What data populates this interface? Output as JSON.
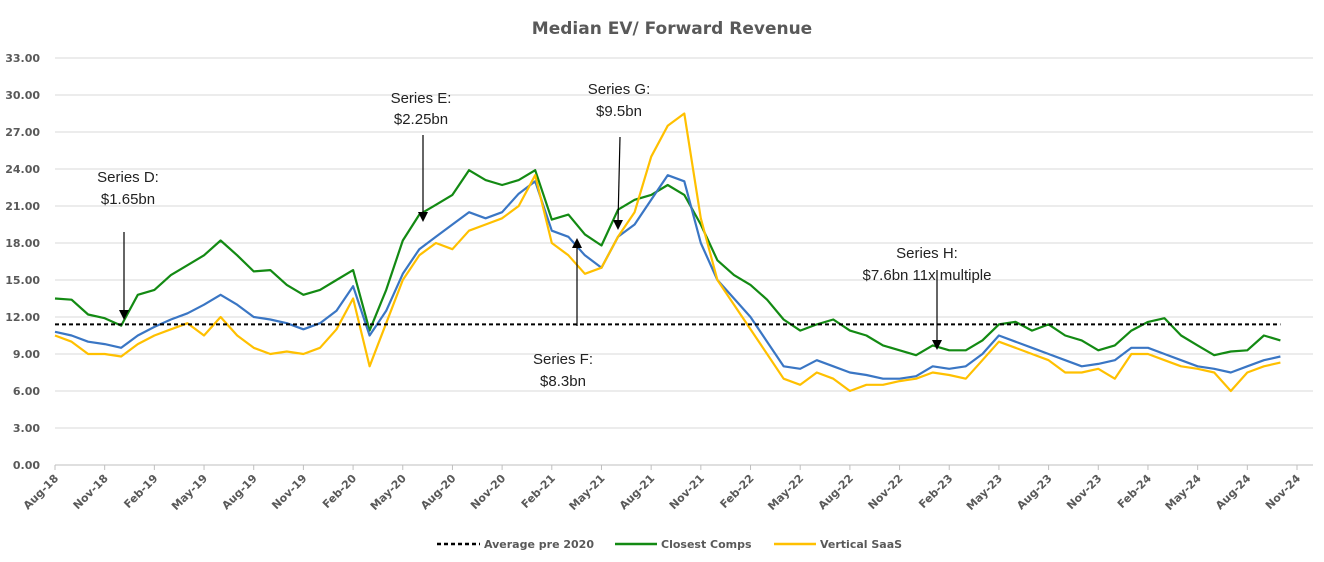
{
  "chart_data": {
    "type": "line",
    "title": "Median EV/ Forward Revenue",
    "xlabel": "",
    "ylabel": "",
    "ylim": [
      0,
      33
    ],
    "y_ticks": [
      "0.00",
      "3.00",
      "6.00",
      "9.00",
      "12.00",
      "15.00",
      "18.00",
      "21.00",
      "24.00",
      "27.00",
      "30.00",
      "33.00"
    ],
    "x_ticks": [
      "Aug-18",
      "Nov-18",
      "Feb-19",
      "May-19",
      "Aug-19",
      "Nov-19",
      "Feb-20",
      "May-20",
      "Aug-20",
      "Nov-20",
      "Feb-21",
      "May-21",
      "Aug-21",
      "Nov-21",
      "Feb-22",
      "May-22",
      "Aug-22",
      "Nov-22",
      "Feb-23",
      "May-23",
      "Aug-23",
      "Nov-23",
      "Feb-24",
      "May-24",
      "Aug-24",
      "Nov-24"
    ],
    "x_start": "Aug-18",
    "x_frequency": "monthly",
    "grid": true,
    "legend_position": "bottom",
    "series": [
      {
        "name": "Average pre 2020",
        "color": "#000000",
        "style": "dashed",
        "constant": 11.4
      },
      {
        "name": "Closest Comps",
        "color": "#138a13",
        "values": [
          13.5,
          13.4,
          12.2,
          11.9,
          11.3,
          13.8,
          14.2,
          15.4,
          16.2,
          17.0,
          18.2,
          17.0,
          15.7,
          15.8,
          14.6,
          13.8,
          14.2,
          15.0,
          15.8,
          10.9,
          14.2,
          18.2,
          20.3,
          21.1,
          21.9,
          23.9,
          23.1,
          22.7,
          23.1,
          23.9,
          19.9,
          20.3,
          18.7,
          17.8,
          20.7,
          21.5,
          21.9,
          22.7,
          21.9,
          19.5,
          16.6,
          15.4,
          14.6,
          13.4,
          11.8,
          10.9,
          11.4,
          11.8,
          10.9,
          10.5,
          9.7,
          9.3,
          8.9,
          9.7,
          9.3,
          9.3,
          10.1,
          11.4,
          11.6,
          10.9,
          11.4,
          10.5,
          10.1,
          9.3,
          9.7,
          10.9,
          11.6,
          11.9,
          10.5,
          9.7,
          8.9,
          9.2,
          9.3,
          10.5,
          10.1
        ]
      },
      {
        "color": "#3a76c4",
        "values": [
          10.8,
          10.5,
          10.0,
          9.8,
          9.5,
          10.5,
          11.2,
          11.8,
          12.3,
          13.0,
          13.8,
          13.0,
          12.0,
          11.8,
          11.5,
          11.0,
          11.5,
          12.5,
          14.5,
          10.5,
          12.5,
          15.5,
          17.5,
          18.5,
          19.5,
          20.5,
          20.0,
          20.5,
          22.0,
          23.0,
          19.0,
          18.5,
          17.0,
          16.0,
          18.5,
          19.5,
          21.5,
          23.5,
          23.0,
          18.0,
          15.0,
          13.5,
          12.0,
          10.0,
          8.0,
          7.8,
          8.5,
          8.0,
          7.5,
          7.3,
          7.0,
          7.0,
          7.2,
          8.0,
          7.8,
          8.0,
          9.0,
          10.5,
          10.0,
          9.5,
          9.0,
          8.5,
          8.0,
          8.2,
          8.5,
          9.5,
          9.5,
          9.0,
          8.5,
          8.0,
          7.8,
          7.5,
          8.0,
          8.5,
          8.8
        ]
      },
      {
        "name": "Vertical SaaS",
        "color": "#ffc000",
        "values": [
          10.5,
          10.0,
          9.0,
          9.0,
          8.8,
          9.8,
          10.5,
          11.0,
          11.5,
          10.5,
          12.0,
          10.5,
          9.5,
          9.0,
          9.2,
          9.0,
          9.5,
          11.0,
          13.5,
          8.0,
          11.5,
          15.0,
          17.0,
          18.0,
          17.5,
          19.0,
          19.5,
          20.0,
          21.0,
          23.5,
          18.0,
          17.0,
          15.5,
          16.0,
          18.5,
          20.5,
          25.0,
          27.5,
          28.5,
          20.0,
          15.0,
          13.0,
          11.0,
          9.0,
          7.0,
          6.5,
          7.5,
          7.0,
          6.0,
          6.5,
          6.5,
          6.8,
          7.0,
          7.5,
          7.3,
          7.0,
          8.5,
          10.0,
          9.5,
          9.0,
          8.5,
          7.5,
          7.5,
          7.8,
          7.0,
          9.0,
          9.0,
          8.5,
          8.0,
          7.8,
          7.5,
          6.0,
          7.5,
          8.0,
          8.3
        ]
      }
    ],
    "annotations": [
      {
        "line1": "Series D:",
        "line2": "$1.65bn",
        "date": "Dec-18"
      },
      {
        "line1": "Series E:",
        "line2": "$2.25bn",
        "date": "Jul-20"
      },
      {
        "line1": "Series F:",
        "line2": "$8.3bn",
        "date": "Apr-21"
      },
      {
        "line1": "Series G:",
        "line2": "$9.5bn",
        "date": "Jul-21"
      },
      {
        "line1": "Series H:",
        "line2": "$7.6bn 11x multiple",
        "date": "Jan-23"
      }
    ]
  }
}
